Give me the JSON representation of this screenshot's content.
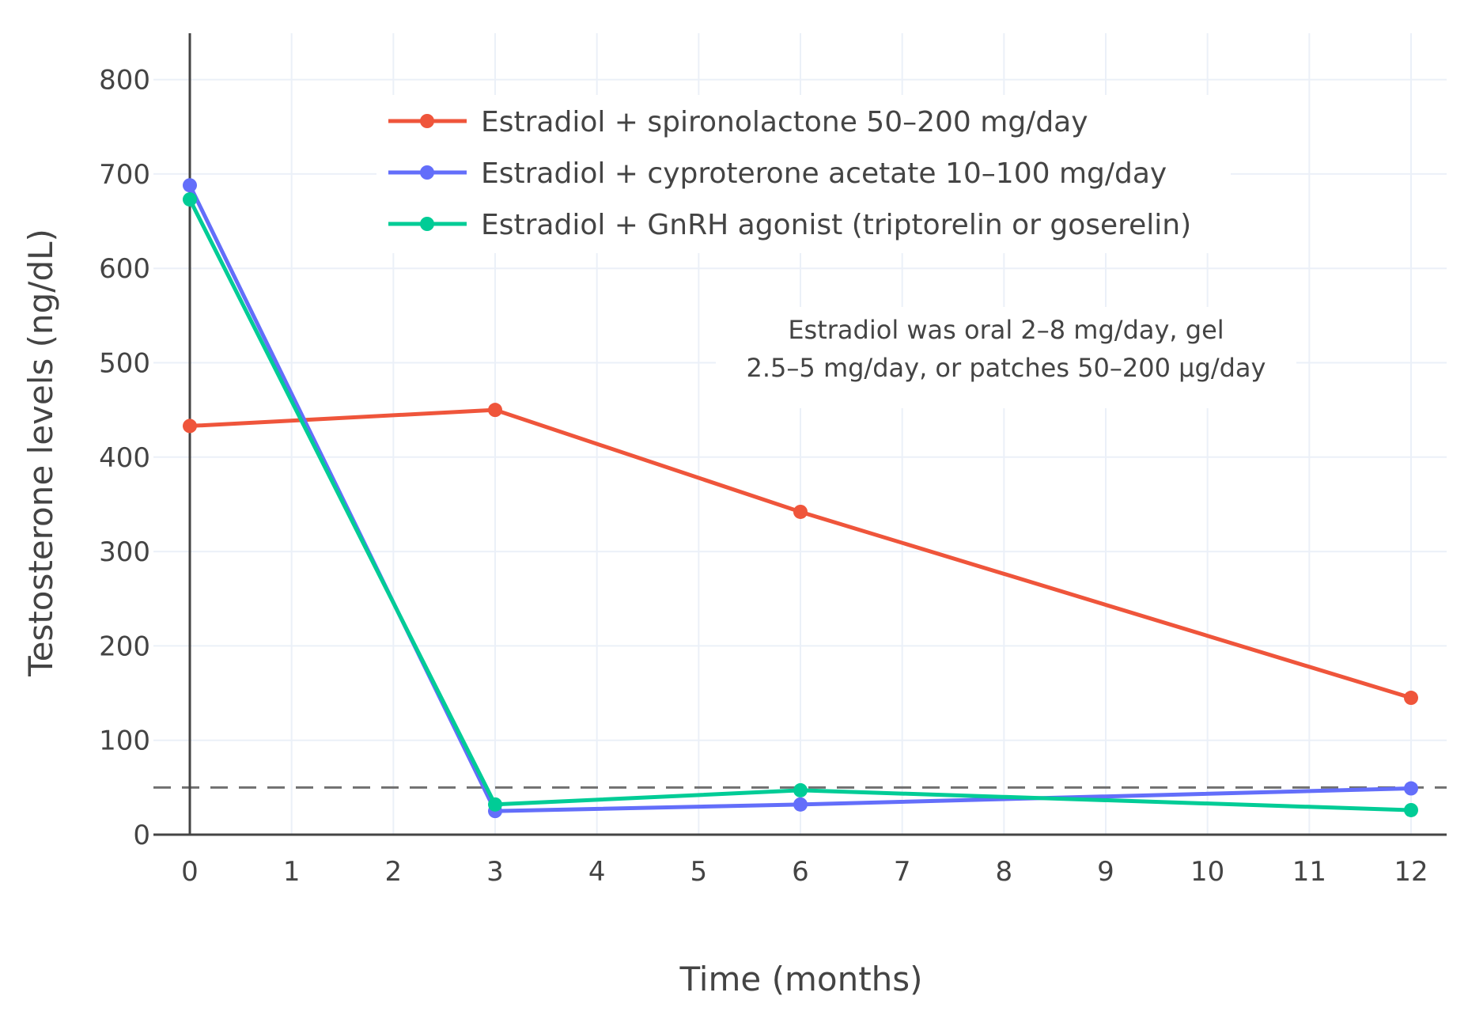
{
  "chart_data": {
    "type": "line",
    "title": "",
    "xlabel": "Time (months)",
    "ylabel": "Testosterone levels (ng/dL)",
    "xlim": [
      -0.36,
      12.34
    ],
    "ylim": [
      0,
      850
    ],
    "xticks": [
      0,
      1,
      2,
      3,
      4,
      5,
      6,
      7,
      8,
      9,
      10,
      11,
      12
    ],
    "yticks": [
      0,
      100,
      200,
      300,
      400,
      500,
      600,
      700,
      800
    ],
    "grid": true,
    "legend_position": "top-center",
    "reference_line": {
      "y": 50,
      "style": "dashed",
      "color": "#707070"
    },
    "series": [
      {
        "name": "Estradiol + spironolactone 50–200 mg/day",
        "color": "#EF553B",
        "x": [
          0,
          3,
          6,
          12
        ],
        "y": [
          433,
          450,
          342,
          145
        ]
      },
      {
        "name": "Estradiol + cyproterone acetate 10–100 mg/day",
        "color": "#636EFA",
        "x": [
          0,
          3,
          6,
          12
        ],
        "y": [
          688,
          25,
          32,
          49
        ]
      },
      {
        "name": "Estradiol + GnRH agonist (triptorelin or goserelin)",
        "color": "#00CC96",
        "x": [
          0,
          3,
          6,
          12
        ],
        "y": [
          673,
          32,
          47,
          26
        ]
      }
    ],
    "annotation": [
      "Estradiol was oral 2–8 mg/day, gel",
      "2.5–5 mg/day, or patches 50–200 µg/day"
    ]
  }
}
